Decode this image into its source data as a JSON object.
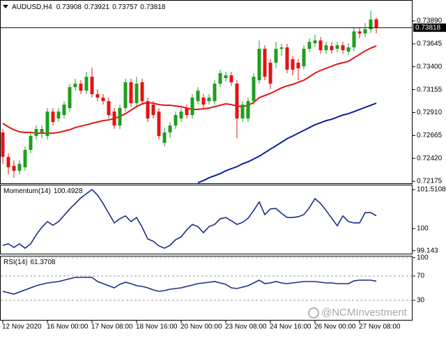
{
  "chart_data": [
    {
      "type": "candlestick",
      "title": "AUDUSD,H4",
      "categories": [
        "12 Nov 2020",
        null,
        null,
        null,
        null,
        null,
        null,
        null,
        "16 Nov 00:00",
        null,
        null,
        null,
        null,
        null,
        null,
        null,
        "17 Nov 08:00",
        null,
        null,
        null,
        null,
        null,
        null,
        null,
        "18 Nov 16:00",
        null,
        null,
        null,
        null,
        null,
        null,
        null,
        "20 Nov 00:00",
        null,
        null,
        null,
        null,
        null,
        null,
        null,
        "23 Nov 08:00",
        null,
        null,
        null,
        null,
        null,
        null,
        null,
        "24 Nov 16:00",
        null,
        null,
        null,
        null,
        null,
        null,
        null,
        "26 Nov 00:00",
        null,
        null,
        null,
        null,
        null,
        null,
        null,
        "27 Nov 08:00",
        null,
        null,
        null
      ],
      "open": [
        0.72697,
        0.72435,
        0.72339,
        0.72287,
        0.72324,
        0.7251,
        0.72659,
        0.72697,
        0.72659,
        0.7292,
        0.72846,
        0.72883,
        0.72958,
        0.73182,
        0.73219,
        0.73144,
        0.73293,
        0.73107,
        0.7307,
        0.73032,
        0.7292,
        0.72771,
        0.72958,
        0.73234,
        0.7301,
        0.73234,
        0.73032,
        0.72995,
        0.7292,
        0.72585,
        0.72697,
        0.72771,
        0.72846,
        0.72958,
        0.72883,
        0.73032,
        0.7307,
        0.73032,
        0.73032,
        0.73219,
        0.73279,
        0.73308,
        0.73219,
        0.72846,
        0.72846,
        0.73032,
        0.73256,
        0.73592,
        0.73443,
        0.73443,
        0.73592,
        0.73607,
        0.7348,
        0.73443,
        0.73405,
        0.73592,
        0.73651,
        0.73681,
        0.73577,
        0.73622,
        0.73592,
        0.73629,
        0.73562,
        0.73607,
        0.73778,
        0.73756,
        0.73801,
        0.73908
      ],
      "high": [
        0.72734,
        0.72473,
        0.72398,
        0.72398,
        0.72548,
        0.72697,
        0.72771,
        0.72771,
        0.72958,
        0.72958,
        0.72958,
        0.73032,
        0.73219,
        0.73271,
        0.73256,
        0.73346,
        0.7339,
        0.73159,
        0.73107,
        0.7307,
        0.72958,
        0.72995,
        0.73271,
        0.73271,
        0.73293,
        0.73271,
        0.7307,
        0.73032,
        0.72958,
        0.72749,
        0.72809,
        0.7292,
        0.72958,
        0.72995,
        0.73107,
        0.73182,
        0.73107,
        0.73107,
        0.73256,
        0.73368,
        0.73346,
        0.73346,
        0.73256,
        0.73032,
        0.7307,
        0.73331,
        0.73681,
        0.73629,
        0.7348,
        0.73666,
        0.73644,
        0.73644,
        0.73517,
        0.7348,
        0.73629,
        0.73704,
        0.73741,
        0.73719,
        0.73666,
        0.73666,
        0.73666,
        0.73666,
        0.73651,
        0.73816,
        0.73816,
        0.73868,
        0.74002,
        0.73921
      ],
      "low": [
        0.72361,
        0.72249,
        0.72212,
        0.72249,
        0.72287,
        0.72473,
        0.72622,
        0.72637,
        0.72622,
        0.72771,
        0.72809,
        0.72846,
        0.7292,
        0.73144,
        0.73107,
        0.73107,
        0.7307,
        0.73032,
        0.72995,
        0.72846,
        0.72734,
        0.72734,
        0.7292,
        0.72973,
        0.72973,
        0.72995,
        0.72809,
        0.72846,
        0.72622,
        0.72548,
        0.72637,
        0.72734,
        0.72809,
        0.72846,
        0.72846,
        0.72995,
        0.72958,
        0.72995,
        0.72995,
        0.73182,
        0.73241,
        0.73196,
        0.72637,
        0.72809,
        0.72809,
        0.72995,
        0.73219,
        0.73256,
        0.73159,
        0.73383,
        0.73517,
        0.73331,
        0.73308,
        0.73256,
        0.73368,
        0.73555,
        0.73614,
        0.7354,
        0.7354,
        0.7354,
        0.73555,
        0.7354,
        0.73525,
        0.7357,
        0.73704,
        0.73719,
        0.73763,
        0.73757
      ],
      "close": [
        0.72435,
        0.72324,
        0.72287,
        0.72361,
        0.7251,
        0.72659,
        0.72734,
        0.72734,
        0.7292,
        0.72809,
        0.7292,
        0.72995,
        0.73182,
        0.73219,
        0.73144,
        0.73293,
        0.73107,
        0.7307,
        0.73032,
        0.72883,
        0.72771,
        0.72958,
        0.73234,
        0.7301,
        0.73219,
        0.73032,
        0.72846,
        0.72883,
        0.72659,
        0.72697,
        0.72771,
        0.72883,
        0.7292,
        0.72883,
        0.7307,
        0.73144,
        0.72995,
        0.7307,
        0.73219,
        0.73331,
        0.73308,
        0.73234,
        0.72846,
        0.72995,
        0.73032,
        0.73293,
        0.73592,
        0.73293,
        0.73219,
        0.73592,
        0.73607,
        0.73368,
        0.73368,
        0.73383,
        0.73592,
        0.73666,
        0.73681,
        0.73577,
        0.73629,
        0.73577,
        0.73629,
        0.73577,
        0.73607,
        0.73778,
        0.73756,
        0.73801,
        0.73905,
        0.73818
      ],
      "up_color": "#1f9e1f",
      "down_color": "#e31414",
      "lines": [
        {
          "color": "#e31414",
          "values": [
            0.72794,
            0.72756,
            0.72726,
            0.72704,
            0.72697,
            0.72697,
            0.72689,
            0.72689,
            0.72689,
            0.72689,
            0.72697,
            0.72712,
            0.72726,
            0.72749,
            0.72764,
            0.72779,
            0.72794,
            0.72809,
            0.72823,
            0.72831,
            0.72846,
            0.72868,
            0.72898,
            0.72935,
            0.72973,
            0.73003,
            0.73017,
            0.7301,
            0.72995,
            0.72988,
            0.72988,
            0.7298,
            0.72973,
            0.72958,
            0.72943,
            0.72943,
            0.7295,
            0.72958,
            0.72973,
            0.72988,
            0.73003,
            0.72995,
            0.7298,
            0.72973,
            0.72988,
            0.73017,
            0.7307,
            0.73092,
            0.73114,
            0.73144,
            0.73174,
            0.73196,
            0.73211,
            0.73234,
            0.73256,
            0.73293,
            0.73331,
            0.73361,
            0.73383,
            0.73405,
            0.73428,
            0.73443,
            0.73458,
            0.73495,
            0.73532,
            0.7357,
            0.73599,
            0.73622
          ]
        },
        {
          "color": "#0b1fa3",
          "values": [
            null,
            null,
            null,
            null,
            null,
            null,
            null,
            null,
            null,
            null,
            null,
            null,
            null,
            null,
            null,
            null,
            null,
            null,
            null,
            null,
            null,
            null,
            null,
            null,
            null,
            null,
            null,
            null,
            null,
            null,
            null,
            null,
            null,
            null,
            null,
            0.7216,
            0.72182,
            0.72212,
            0.72234,
            0.72257,
            0.72287,
            0.72309,
            0.72331,
            0.72361,
            0.72383,
            0.72413,
            0.72443,
            0.7248,
            0.72518,
            0.72555,
            0.72592,
            0.7263,
            0.72659,
            0.72689,
            0.72719,
            0.72749,
            0.72779,
            0.72801,
            0.72823,
            0.72838,
            0.72861,
            0.72883,
            0.72898,
            0.7292,
            0.72943,
            0.72965,
            0.72988,
            0.7301
          ]
        }
      ],
      "price_line": true,
      "ylim": [
        0.72153,
        0.74114
      ],
      "yticks": [
        {
          "value": 0.7389,
          "label": "0.73890"
        },
        0.73645,
        {
          "value": 0.734,
          "label": "0.73400"
        },
        0.73155,
        {
          "value": 0.7291,
          "label": "0.72910"
        },
        0.72665,
        {
          "value": 0.7242,
          "label": "0.72420"
        },
        0.72175
      ]
    },
    {
      "type": "line",
      "title": "Momentum(14)",
      "color": "#1c2b86",
      "values": [
        99.35,
        99.41,
        99.27,
        99.41,
        99.24,
        99.41,
        99.76,
        100.05,
        100.27,
        100.13,
        100.27,
        100.51,
        100.76,
        100.97,
        101.19,
        101.35,
        101.51,
        101.3,
        100.97,
        100.59,
        100.22,
        100.38,
        100.49,
        100.27,
        100.43,
        100.05,
        99.6,
        99.51,
        99.33,
        99.24,
        99.35,
        99.57,
        99.68,
        99.95,
        100.16,
        100.08,
        99.84,
        100.08,
        100.16,
        100.38,
        100.43,
        100.3,
        100.16,
        100.24,
        100.4,
        100.7,
        101.03,
        100.54,
        100.76,
        100.78,
        100.59,
        100.43,
        100.43,
        100.46,
        100.54,
        100.81,
        101.16,
        100.97,
        100.7,
        100.4,
        100.11,
        100.49,
        100.27,
        100.22,
        100.22,
        100.62,
        100.62,
        100.4928
      ],
      "ylim": [
        99.0019,
        101.6995
      ],
      "yticks": [
        101.5108,
        100,
        99.143
      ],
      "grid": false
    },
    {
      "type": "line",
      "title": "RSI(14)",
      "color": "#1c2b86",
      "values": [
        44.86,
        42.57,
        40.29,
        43.71,
        47.14,
        50.57,
        54.0,
        56.29,
        58.57,
        59.71,
        60.86,
        63.14,
        65.43,
        67.71,
        67.71,
        67.71,
        67.71,
        60.86,
        57.43,
        54.0,
        50.57,
        56.29,
        59.71,
        57.43,
        54.0,
        52.86,
        50.57,
        47.14,
        44.86,
        46.0,
        48.29,
        49.43,
        50.57,
        52.86,
        55.14,
        57.43,
        58.57,
        59.71,
        60.86,
        58.57,
        56.29,
        50.57,
        49.43,
        51.71,
        54.0,
        58.57,
        63.14,
        57.43,
        58.57,
        60.86,
        58.57,
        57.43,
        58.57,
        59.71,
        60.86,
        60.86,
        60.86,
        59.71,
        58.57,
        58.57,
        57.43,
        57.43,
        57.43,
        62.0,
        63.14,
        63.14,
        63.14,
        61.3708
      ],
      "ylim": [
        -3.1,
        103.1
      ],
      "yticks": [
        100,
        70,
        30
      ],
      "grid": true
    }
  ],
  "watermark": "@NCMInvestment"
}
